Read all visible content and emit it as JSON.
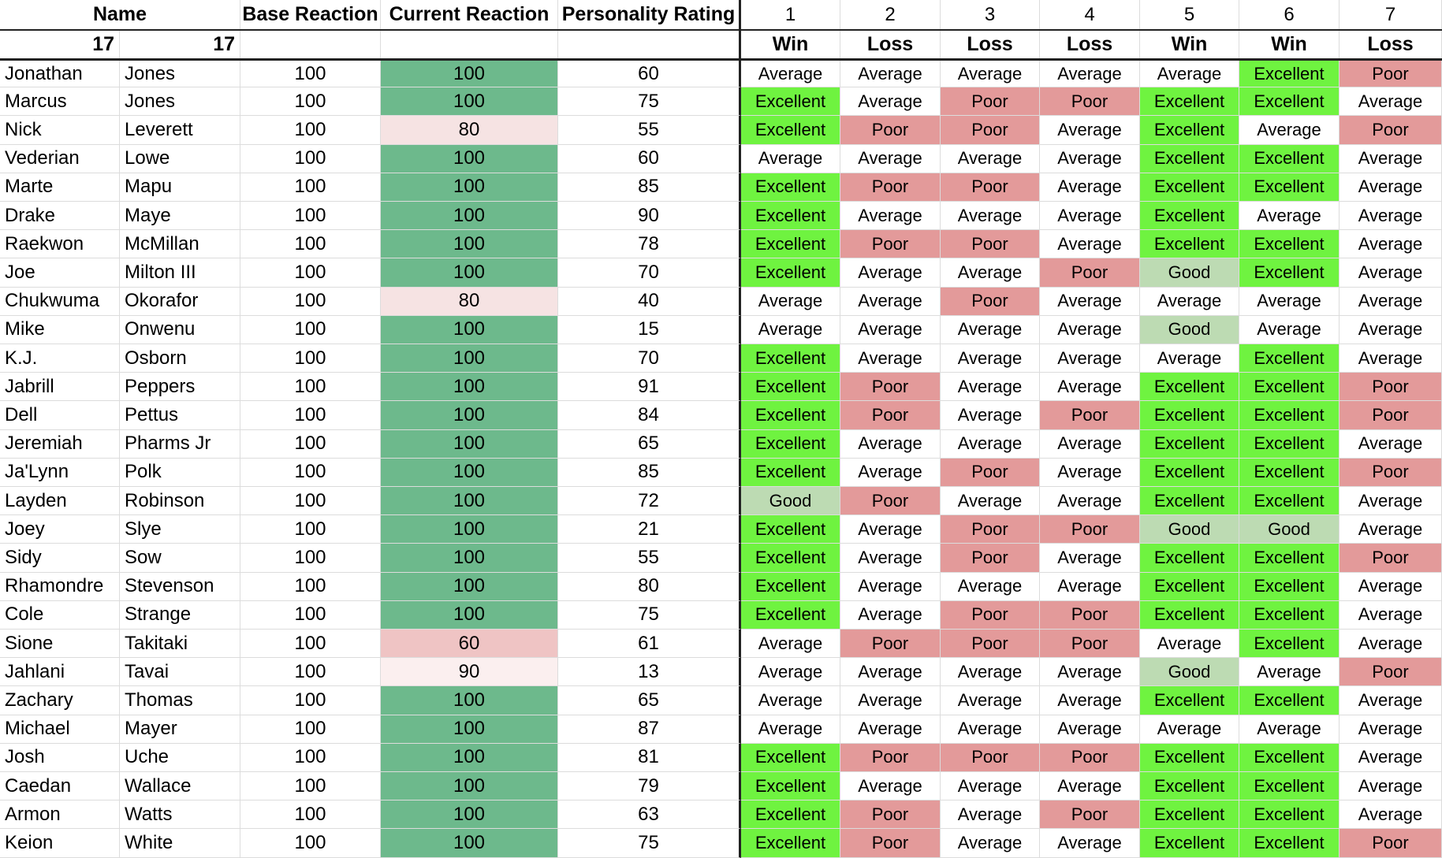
{
  "colors": {
    "excellent": "#6ff340",
    "good": "#bddbb3",
    "average": "#ffffff",
    "poor": "#e39a9a",
    "reaction_full": "#6db98c",
    "reaction_80": "#f6e3e3",
    "reaction_60": "#efc4c4",
    "reaction_90": "#fbefef",
    "gridline": "#dcdcdc",
    "border_dark": "#222222"
  },
  "header": {
    "name": "Name",
    "base_reaction": "Base Reaction",
    "current_reaction": "Current Reaction",
    "personality_rating": "Personality Rating",
    "weeks": [
      "1",
      "2",
      "3",
      "4",
      "5",
      "6",
      "7"
    ]
  },
  "subheader": {
    "value_a": "17",
    "value_b": "17",
    "outcomes": [
      "Win",
      "Loss",
      "Loss",
      "Loss",
      "Win",
      "Win",
      "Loss"
    ]
  },
  "players": [
    {
      "first": "Jonathan",
      "last": "Jones",
      "base": "100",
      "current": "100",
      "rating": "60",
      "reactions": [
        "Average",
        "Average",
        "Average",
        "Average",
        "Average",
        "Excellent",
        "Poor"
      ]
    },
    {
      "first": "Marcus",
      "last": "Jones",
      "base": "100",
      "current": "100",
      "rating": "75",
      "reactions": [
        "Excellent",
        "Average",
        "Poor",
        "Poor",
        "Excellent",
        "Excellent",
        "Average"
      ]
    },
    {
      "first": "Nick",
      "last": "Leverett",
      "base": "100",
      "current": "80",
      "rating": "55",
      "reactions": [
        "Excellent",
        "Poor",
        "Poor",
        "Average",
        "Excellent",
        "Average",
        "Poor"
      ]
    },
    {
      "first": "Vederian",
      "last": "Lowe",
      "base": "100",
      "current": "100",
      "rating": "60",
      "reactions": [
        "Average",
        "Average",
        "Average",
        "Average",
        "Excellent",
        "Excellent",
        "Average"
      ]
    },
    {
      "first": "Marte",
      "last": "Mapu",
      "base": "100",
      "current": "100",
      "rating": "85",
      "reactions": [
        "Excellent",
        "Poor",
        "Poor",
        "Average",
        "Excellent",
        "Excellent",
        "Average"
      ]
    },
    {
      "first": "Drake",
      "last": "Maye",
      "base": "100",
      "current": "100",
      "rating": "90",
      "reactions": [
        "Excellent",
        "Average",
        "Average",
        "Average",
        "Excellent",
        "Average",
        "Average"
      ]
    },
    {
      "first": "Raekwon",
      "last": "McMillan",
      "base": "100",
      "current": "100",
      "rating": "78",
      "reactions": [
        "Excellent",
        "Poor",
        "Poor",
        "Average",
        "Excellent",
        "Excellent",
        "Average"
      ]
    },
    {
      "first": "Joe",
      "last": "Milton III",
      "base": "100",
      "current": "100",
      "rating": "70",
      "reactions": [
        "Excellent",
        "Average",
        "Average",
        "Poor",
        "Good",
        "Excellent",
        "Average"
      ]
    },
    {
      "first": "Chukwuma",
      "last": "Okorafor",
      "base": "100",
      "current": "80",
      "rating": "40",
      "reactions": [
        "Average",
        "Average",
        "Poor",
        "Average",
        "Average",
        "Average",
        "Average"
      ]
    },
    {
      "first": "Mike",
      "last": "Onwenu",
      "base": "100",
      "current": "100",
      "rating": "15",
      "reactions": [
        "Average",
        "Average",
        "Average",
        "Average",
        "Good",
        "Average",
        "Average"
      ]
    },
    {
      "first": "K.J.",
      "last": "Osborn",
      "base": "100",
      "current": "100",
      "rating": "70",
      "reactions": [
        "Excellent",
        "Average",
        "Average",
        "Average",
        "Average",
        "Excellent",
        "Average"
      ]
    },
    {
      "first": "Jabrill",
      "last": "Peppers",
      "base": "100",
      "current": "100",
      "rating": "91",
      "reactions": [
        "Excellent",
        "Poor",
        "Average",
        "Average",
        "Excellent",
        "Excellent",
        "Poor"
      ]
    },
    {
      "first": "Dell",
      "last": "Pettus",
      "base": "100",
      "current": "100",
      "rating": "84",
      "reactions": [
        "Excellent",
        "Poor",
        "Average",
        "Poor",
        "Excellent",
        "Excellent",
        "Poor"
      ]
    },
    {
      "first": "Jeremiah",
      "last": "Pharms Jr",
      "base": "100",
      "current": "100",
      "rating": "65",
      "reactions": [
        "Excellent",
        "Average",
        "Average",
        "Average",
        "Excellent",
        "Excellent",
        "Average"
      ]
    },
    {
      "first": "Ja'Lynn",
      "last": "Polk",
      "base": "100",
      "current": "100",
      "rating": "85",
      "reactions": [
        "Excellent",
        "Average",
        "Poor",
        "Average",
        "Excellent",
        "Excellent",
        "Poor"
      ]
    },
    {
      "first": "Layden",
      "last": "Robinson",
      "base": "100",
      "current": "100",
      "rating": "72",
      "reactions": [
        "Good",
        "Poor",
        "Average",
        "Average",
        "Excellent",
        "Excellent",
        "Average"
      ]
    },
    {
      "first": "Joey",
      "last": "Slye",
      "base": "100",
      "current": "100",
      "rating": "21",
      "reactions": [
        "Excellent",
        "Average",
        "Poor",
        "Poor",
        "Good",
        "Good",
        "Average"
      ]
    },
    {
      "first": "Sidy",
      "last": "Sow",
      "base": "100",
      "current": "100",
      "rating": "55",
      "reactions": [
        "Excellent",
        "Average",
        "Poor",
        "Average",
        "Excellent",
        "Excellent",
        "Poor"
      ]
    },
    {
      "first": "Rhamondre",
      "last": "Stevenson",
      "base": "100",
      "current": "100",
      "rating": "80",
      "reactions": [
        "Excellent",
        "Average",
        "Average",
        "Average",
        "Excellent",
        "Excellent",
        "Average"
      ]
    },
    {
      "first": "Cole",
      "last": "Strange",
      "base": "100",
      "current": "100",
      "rating": "75",
      "reactions": [
        "Excellent",
        "Average",
        "Poor",
        "Poor",
        "Excellent",
        "Excellent",
        "Average"
      ]
    },
    {
      "first": "Sione",
      "last": "Takitaki",
      "base": "100",
      "current": "60",
      "rating": "61",
      "reactions": [
        "Average",
        "Poor",
        "Poor",
        "Poor",
        "Average",
        "Excellent",
        "Average"
      ]
    },
    {
      "first": "Jahlani",
      "last": "Tavai",
      "base": "100",
      "current": "90",
      "rating": "13",
      "reactions": [
        "Average",
        "Average",
        "Average",
        "Average",
        "Good",
        "Average",
        "Poor"
      ]
    },
    {
      "first": "Zachary",
      "last": "Thomas",
      "base": "100",
      "current": "100",
      "rating": "65",
      "reactions": [
        "Average",
        "Average",
        "Average",
        "Average",
        "Excellent",
        "Excellent",
        "Average"
      ]
    },
    {
      "first": "Michael",
      "last": "Mayer",
      "base": "100",
      "current": "100",
      "rating": "87",
      "reactions": [
        "Average",
        "Average",
        "Average",
        "Average",
        "Average",
        "Average",
        "Average"
      ]
    },
    {
      "first": "Josh",
      "last": "Uche",
      "base": "100",
      "current": "100",
      "rating": "81",
      "reactions": [
        "Excellent",
        "Poor",
        "Poor",
        "Poor",
        "Excellent",
        "Excellent",
        "Average"
      ]
    },
    {
      "first": "Caedan",
      "last": "Wallace",
      "base": "100",
      "current": "100",
      "rating": "79",
      "reactions": [
        "Excellent",
        "Average",
        "Average",
        "Average",
        "Excellent",
        "Excellent",
        "Average"
      ]
    },
    {
      "first": "Armon",
      "last": "Watts",
      "base": "100",
      "current": "100",
      "rating": "63",
      "reactions": [
        "Excellent",
        "Poor",
        "Average",
        "Poor",
        "Excellent",
        "Excellent",
        "Average"
      ]
    },
    {
      "first": "Keion",
      "last": "White",
      "base": "100",
      "current": "100",
      "rating": "75",
      "reactions": [
        "Excellent",
        "Poor",
        "Average",
        "Average",
        "Excellent",
        "Excellent",
        "Poor"
      ]
    }
  ]
}
